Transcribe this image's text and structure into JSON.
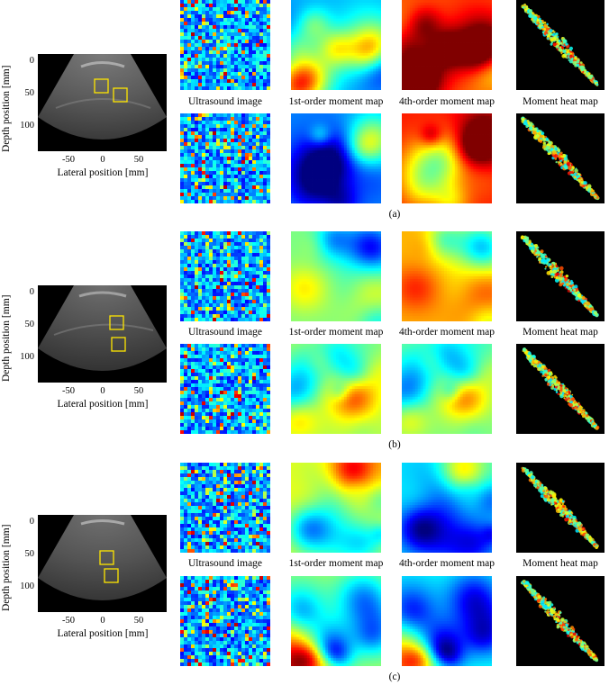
{
  "panels": [
    {
      "label": "(a)"
    },
    {
      "label": "(b)"
    },
    {
      "label": "(c)"
    }
  ],
  "axes": {
    "ylabel": "Depth position [mm]",
    "xlabel": "Lateral position [mm]",
    "yticks": [
      "0",
      "50",
      "100"
    ],
    "xticks": [
      "-50",
      "0",
      "50"
    ]
  },
  "columns": {
    "ultrasound": "Ultrasound image",
    "first_moment": "1st-order moment map",
    "fourth_moment": "4th-order moment map",
    "heat": "Moment heat map"
  },
  "colors": {
    "roi_box": "#ffe600",
    "heat_bg": "#000000",
    "jet_low": "#00008f",
    "jet_mid": "#7dffb8",
    "jet_high": "#800000"
  }
}
